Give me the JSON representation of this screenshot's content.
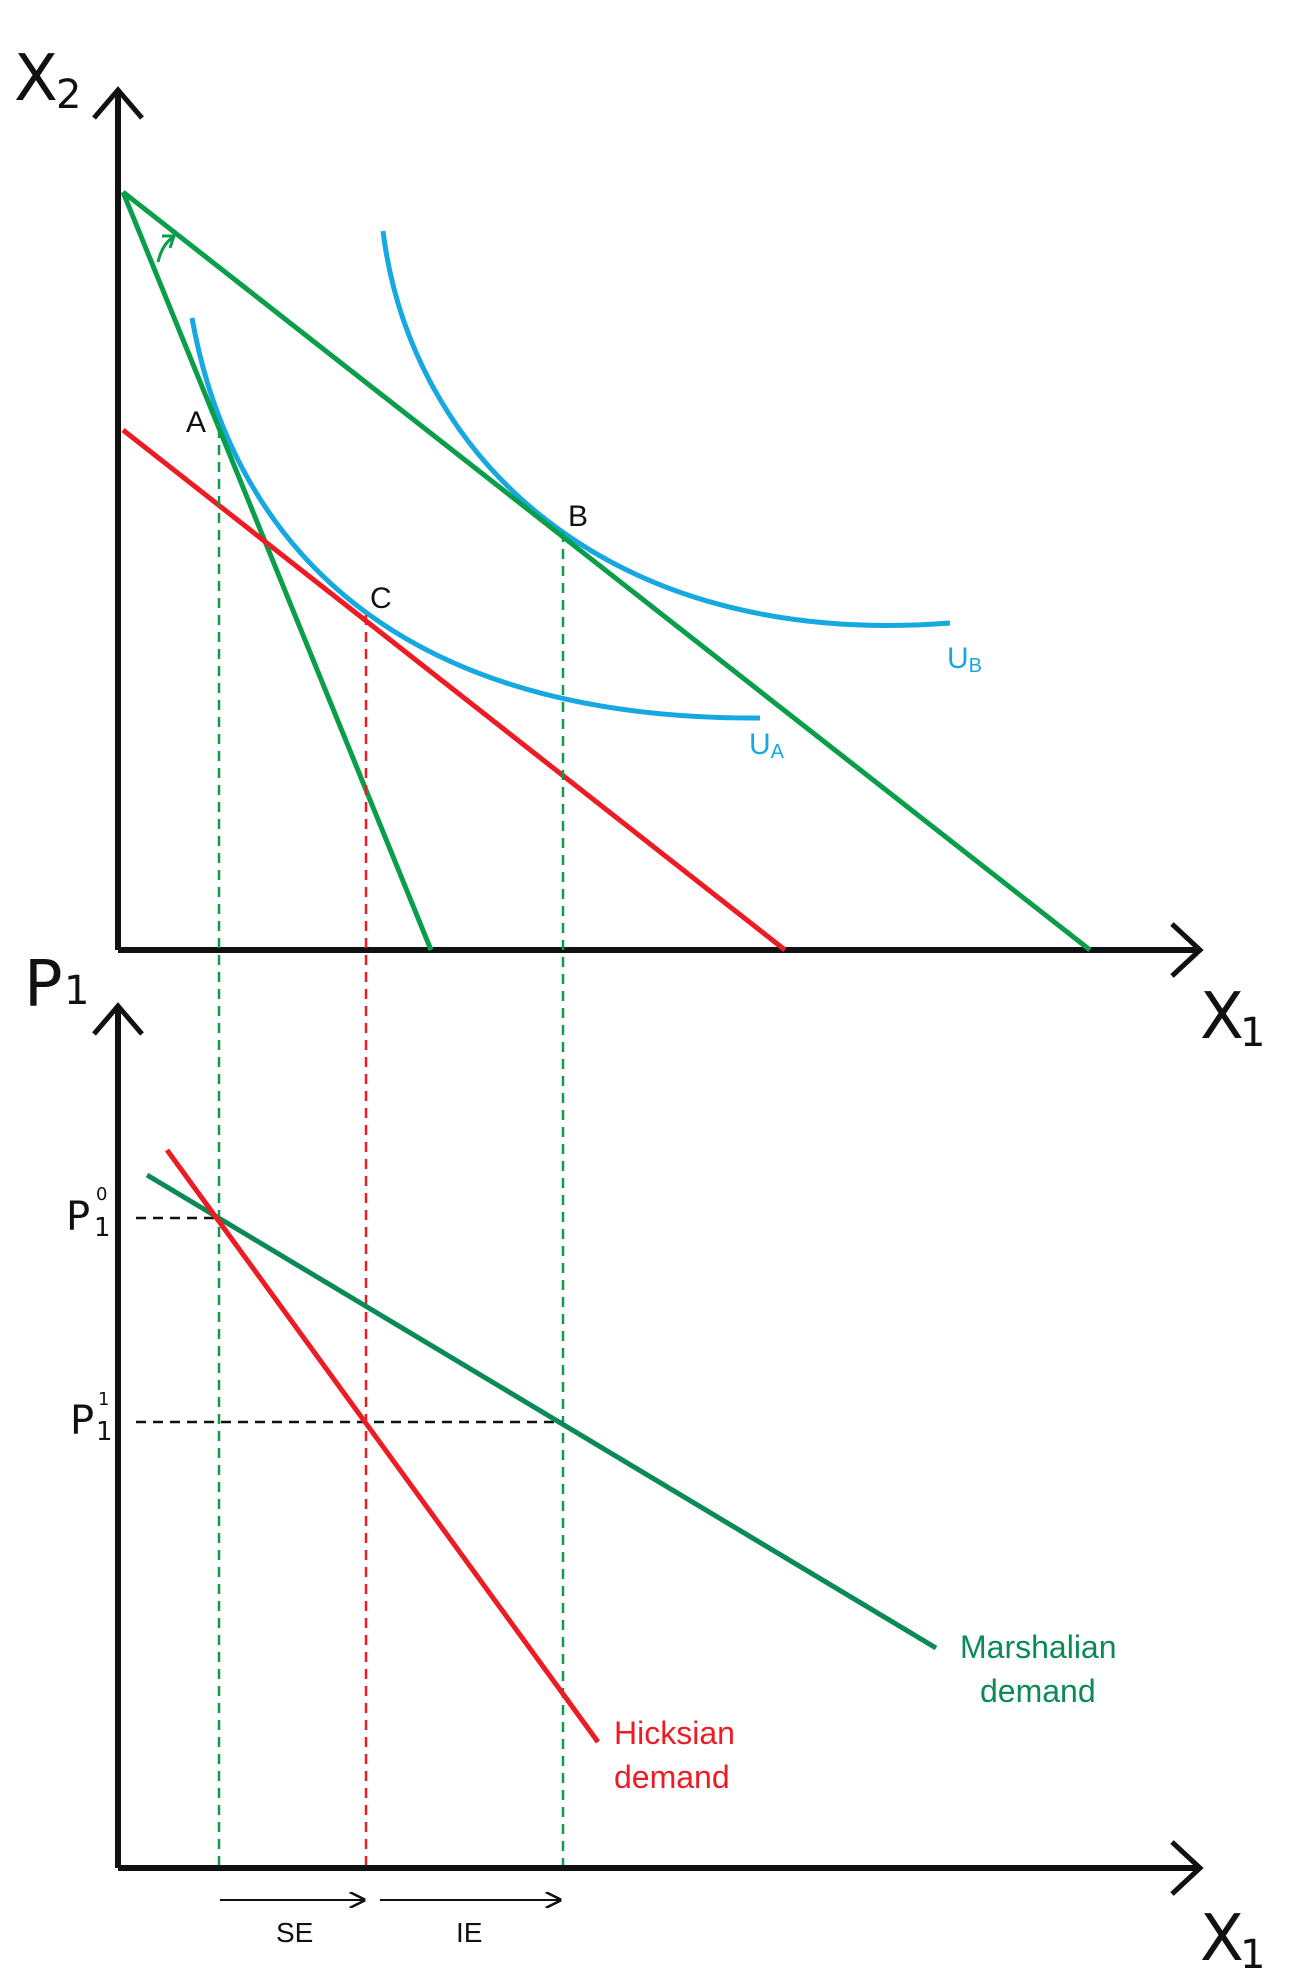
{
  "colors": {
    "axis": "#111111",
    "budget": "#0b9e4a",
    "compensated_budget": "#ed1c24",
    "indifference": "#16a8e0",
    "marshallian": "#0a8a55",
    "hicksian": "#ed1c24",
    "price_guides": "#111111"
  },
  "top_panel": {
    "y_axis_label": "X",
    "y_axis_sub": "2",
    "x_axis_label": "X",
    "x_axis_sub": "1",
    "points": {
      "A": "A",
      "B": "B",
      "C": "C"
    },
    "curves": {
      "u_a": {
        "label": "U",
        "sub": "A"
      },
      "u_b": {
        "label": "U",
        "sub": "B"
      }
    }
  },
  "bottom_panel": {
    "y_axis_label": "P",
    "y_axis_sub": "1",
    "x_axis_label": "X",
    "x_axis_sub": "1",
    "price_levels": {
      "p0": {
        "label": "P",
        "sub": "1",
        "sup": "0"
      },
      "p1": {
        "label": "P",
        "sub": "1",
        "sup": "1"
      }
    },
    "demand_curves": {
      "marshallian": {
        "line1": "Marshalian",
        "line2": "demand"
      },
      "hicksian": {
        "line1": "Hicksian",
        "line2": "demand"
      }
    },
    "effects": {
      "se": "SE",
      "ie": "IE"
    }
  }
}
